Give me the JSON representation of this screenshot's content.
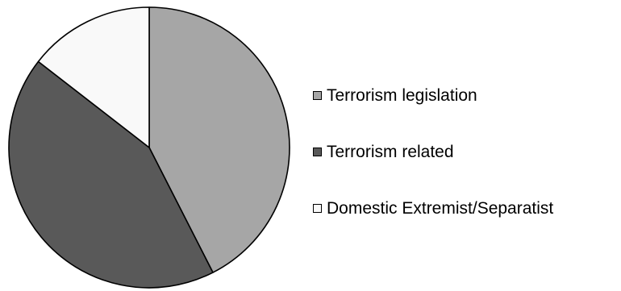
{
  "chart_data": {
    "type": "pie",
    "slices": [
      {
        "label": "Terrorism legislation",
        "value": 42.5,
        "color": "#a6a6a6"
      },
      {
        "label": "Terrorism related",
        "value": 43.0,
        "color": "#595959"
      },
      {
        "label": "Domestic Extremist/Separatist",
        "value": 14.5,
        "color": "#f9f9f9"
      }
    ],
    "start_angle": "12 o'clock",
    "direction": "clockwise",
    "legend_position": "right",
    "title": ""
  }
}
